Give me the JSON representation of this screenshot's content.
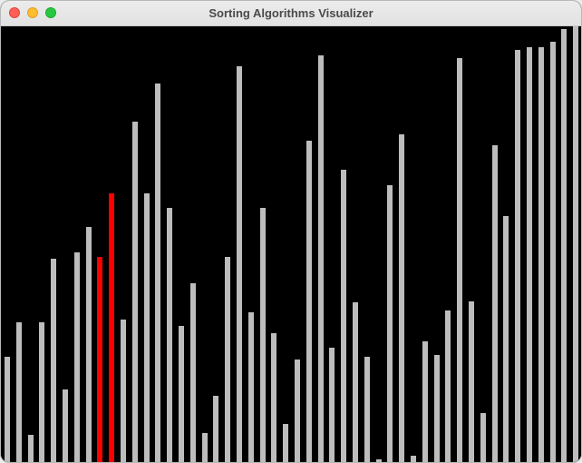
{
  "window": {
    "title": "Sorting Algorithms Visualizer"
  },
  "colors": {
    "background": "#000000",
    "bar_default": "#bdbdbd",
    "bar_active": "#ff0000"
  },
  "visualizer": {
    "max_value": 480,
    "bars": [
      {
        "value": 116,
        "state": "default"
      },
      {
        "value": 154,
        "state": "default"
      },
      {
        "value": 30,
        "state": "default"
      },
      {
        "value": 154,
        "state": "default"
      },
      {
        "value": 224,
        "state": "default"
      },
      {
        "value": 80,
        "state": "default"
      },
      {
        "value": 231,
        "state": "default"
      },
      {
        "value": 259,
        "state": "default"
      },
      {
        "value": 226,
        "state": "active"
      },
      {
        "value": 296,
        "state": "active"
      },
      {
        "value": 157,
        "state": "default"
      },
      {
        "value": 375,
        "state": "default"
      },
      {
        "value": 296,
        "state": "default"
      },
      {
        "value": 417,
        "state": "default"
      },
      {
        "value": 280,
        "state": "default"
      },
      {
        "value": 150,
        "state": "default"
      },
      {
        "value": 197,
        "state": "default"
      },
      {
        "value": 32,
        "state": "default"
      },
      {
        "value": 73,
        "state": "default"
      },
      {
        "value": 226,
        "state": "default"
      },
      {
        "value": 436,
        "state": "default"
      },
      {
        "value": 165,
        "state": "default"
      },
      {
        "value": 280,
        "state": "default"
      },
      {
        "value": 142,
        "state": "default"
      },
      {
        "value": 42,
        "state": "default"
      },
      {
        "value": 113,
        "state": "default"
      },
      {
        "value": 354,
        "state": "default"
      },
      {
        "value": 448,
        "state": "default"
      },
      {
        "value": 126,
        "state": "default"
      },
      {
        "value": 322,
        "state": "default"
      },
      {
        "value": 176,
        "state": "default"
      },
      {
        "value": 116,
        "state": "default"
      },
      {
        "value": 3,
        "state": "default"
      },
      {
        "value": 305,
        "state": "default"
      },
      {
        "value": 361,
        "state": "default"
      },
      {
        "value": 7,
        "state": "default"
      },
      {
        "value": 133,
        "state": "default"
      },
      {
        "value": 118,
        "state": "default"
      },
      {
        "value": 167,
        "state": "default"
      },
      {
        "value": 445,
        "state": "default"
      },
      {
        "value": 177,
        "state": "default"
      },
      {
        "value": 54,
        "state": "default"
      },
      {
        "value": 349,
        "state": "default"
      },
      {
        "value": 271,
        "state": "default"
      },
      {
        "value": 454,
        "state": "default"
      },
      {
        "value": 457,
        "state": "default"
      },
      {
        "value": 457,
        "state": "default"
      },
      {
        "value": 463,
        "state": "default"
      },
      {
        "value": 477,
        "state": "default"
      },
      {
        "value": 480,
        "state": "default"
      }
    ]
  }
}
